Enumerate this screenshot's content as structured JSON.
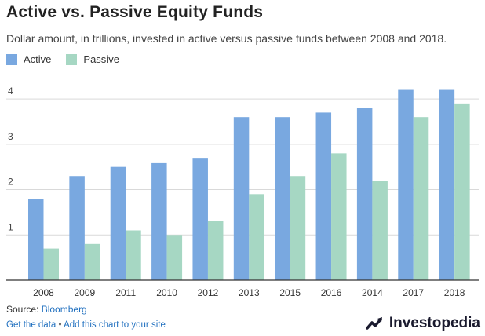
{
  "title": "Active vs. Passive Equity Funds",
  "subtitle": "Dollar amount, in trillions, invested in active versus passive funds between 2008 and 2018.",
  "source_prefix": "Source: ",
  "source_name": "Bloomberg",
  "footer": {
    "get_data": "Get the data",
    "separator": " • ",
    "add_chart": "Add this chart to your site"
  },
  "brand": "Investopedia",
  "colors": {
    "active": "#79a8e0",
    "passive": "#a6d7c3",
    "grid": "#d9d9d9",
    "axis": "#333333"
  },
  "chart_data": {
    "type": "bar",
    "categories": [
      "2008",
      "2009",
      "2011",
      "2010",
      "2012",
      "2013",
      "2015",
      "2016",
      "2014",
      "2017",
      "2018"
    ],
    "series": [
      {
        "name": "Active",
        "values": [
          1.8,
          2.3,
          2.5,
          2.6,
          2.7,
          3.6,
          3.6,
          3.7,
          3.8,
          4.2,
          4.2
        ]
      },
      {
        "name": "Passive",
        "values": [
          0.7,
          0.8,
          1.1,
          1.0,
          1.3,
          1.9,
          2.3,
          2.8,
          2.2,
          3.6,
          3.9
        ]
      }
    ],
    "yticks": [
      "1",
      "2",
      "3",
      "4"
    ],
    "ytick_values": [
      1,
      2,
      3,
      4
    ],
    "ylim": [
      0,
      4.4
    ],
    "grid": true,
    "legend": "top-left",
    "xlabel": "",
    "ylabel": ""
  }
}
